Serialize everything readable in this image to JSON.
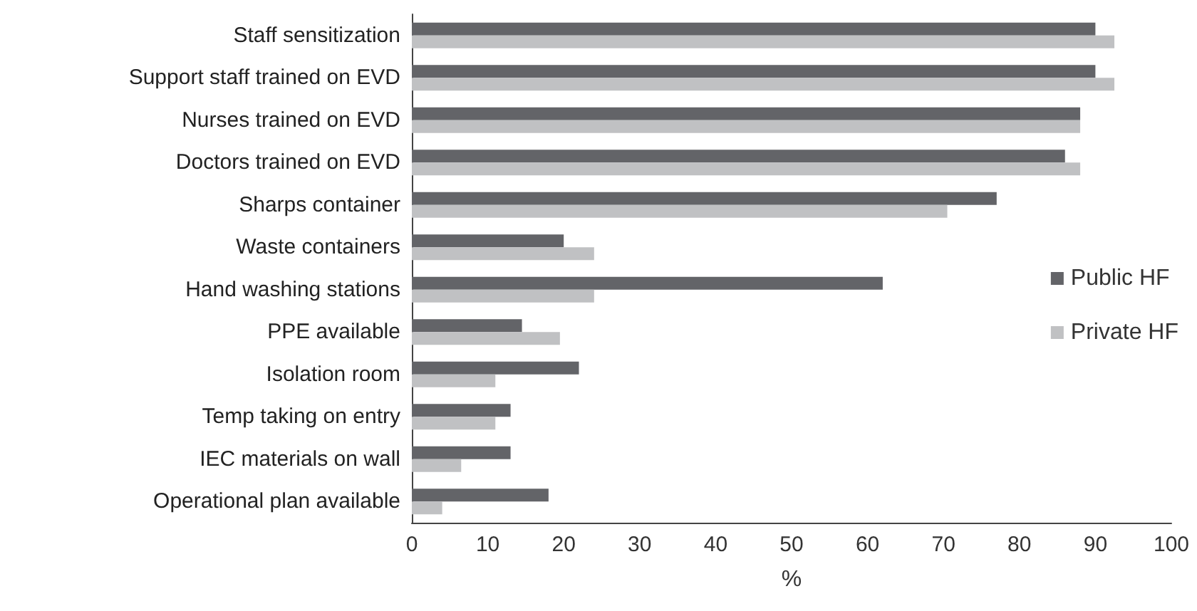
{
  "chart_data": {
    "type": "bar",
    "orientation": "horizontal",
    "xlabel": "%",
    "categories": [
      "Staff sensitization",
      "Support staff trained on EVD",
      "Nurses trained on EVD",
      "Doctors trained on EVD",
      "Sharps container",
      "Waste containers",
      "Hand washing stations",
      "PPE available",
      "Isolation room",
      "Temp taking on entry",
      "IEC materials on wall",
      "Operational plan available"
    ],
    "series": [
      {
        "name": "Public HF",
        "color": "#636468",
        "values": [
          90,
          90,
          88,
          86,
          77,
          20,
          62,
          14.5,
          22,
          13,
          13,
          18
        ]
      },
      {
        "name": "Private HF",
        "color": "#c0c1c3",
        "values": [
          92.5,
          92.5,
          88,
          88,
          70.5,
          24,
          24,
          19.5,
          11,
          11,
          6.5,
          4
        ]
      }
    ],
    "xlim": [
      0,
      100
    ],
    "xticks": [
      0,
      10,
      20,
      30,
      40,
      50,
      60,
      70,
      80,
      90,
      100
    ],
    "grid": false,
    "legend": "right"
  }
}
